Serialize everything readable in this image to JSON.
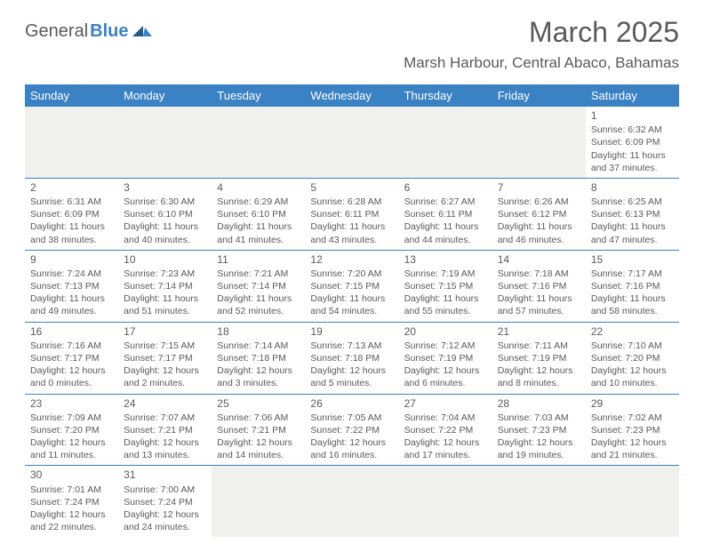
{
  "logo": {
    "part1": "General",
    "part2": "Blue"
  },
  "title": "March 2025",
  "location": "Marsh Harbour, Central Abaco, Bahamas",
  "colors": {
    "header_bg": "#3b82c4",
    "header_text": "#ffffff",
    "text": "#5a5a5a",
    "empty_bg": "#f0f0ee",
    "divider": "#3b82c4",
    "page_bg": "#ffffff"
  },
  "dayHeaders": [
    "Sunday",
    "Monday",
    "Tuesday",
    "Wednesday",
    "Thursday",
    "Friday",
    "Saturday"
  ],
  "weeks": [
    [
      {
        "empty": true
      },
      {
        "empty": true
      },
      {
        "empty": true
      },
      {
        "empty": true
      },
      {
        "empty": true
      },
      {
        "empty": true
      },
      {
        "day": "1",
        "sunrise": "Sunrise: 6:32 AM",
        "sunset": "Sunset: 6:09 PM",
        "daylight1": "Daylight: 11 hours",
        "daylight2": "and 37 minutes."
      }
    ],
    [
      {
        "day": "2",
        "sunrise": "Sunrise: 6:31 AM",
        "sunset": "Sunset: 6:09 PM",
        "daylight1": "Daylight: 11 hours",
        "daylight2": "and 38 minutes."
      },
      {
        "day": "3",
        "sunrise": "Sunrise: 6:30 AM",
        "sunset": "Sunset: 6:10 PM",
        "daylight1": "Daylight: 11 hours",
        "daylight2": "and 40 minutes."
      },
      {
        "day": "4",
        "sunrise": "Sunrise: 6:29 AM",
        "sunset": "Sunset: 6:10 PM",
        "daylight1": "Daylight: 11 hours",
        "daylight2": "and 41 minutes."
      },
      {
        "day": "5",
        "sunrise": "Sunrise: 6:28 AM",
        "sunset": "Sunset: 6:11 PM",
        "daylight1": "Daylight: 11 hours",
        "daylight2": "and 43 minutes."
      },
      {
        "day": "6",
        "sunrise": "Sunrise: 6:27 AM",
        "sunset": "Sunset: 6:11 PM",
        "daylight1": "Daylight: 11 hours",
        "daylight2": "and 44 minutes."
      },
      {
        "day": "7",
        "sunrise": "Sunrise: 6:26 AM",
        "sunset": "Sunset: 6:12 PM",
        "daylight1": "Daylight: 11 hours",
        "daylight2": "and 46 minutes."
      },
      {
        "day": "8",
        "sunrise": "Sunrise: 6:25 AM",
        "sunset": "Sunset: 6:13 PM",
        "daylight1": "Daylight: 11 hours",
        "daylight2": "and 47 minutes."
      }
    ],
    [
      {
        "day": "9",
        "sunrise": "Sunrise: 7:24 AM",
        "sunset": "Sunset: 7:13 PM",
        "daylight1": "Daylight: 11 hours",
        "daylight2": "and 49 minutes."
      },
      {
        "day": "10",
        "sunrise": "Sunrise: 7:23 AM",
        "sunset": "Sunset: 7:14 PM",
        "daylight1": "Daylight: 11 hours",
        "daylight2": "and 51 minutes."
      },
      {
        "day": "11",
        "sunrise": "Sunrise: 7:21 AM",
        "sunset": "Sunset: 7:14 PM",
        "daylight1": "Daylight: 11 hours",
        "daylight2": "and 52 minutes."
      },
      {
        "day": "12",
        "sunrise": "Sunrise: 7:20 AM",
        "sunset": "Sunset: 7:15 PM",
        "daylight1": "Daylight: 11 hours",
        "daylight2": "and 54 minutes."
      },
      {
        "day": "13",
        "sunrise": "Sunrise: 7:19 AM",
        "sunset": "Sunset: 7:15 PM",
        "daylight1": "Daylight: 11 hours",
        "daylight2": "and 55 minutes."
      },
      {
        "day": "14",
        "sunrise": "Sunrise: 7:18 AM",
        "sunset": "Sunset: 7:16 PM",
        "daylight1": "Daylight: 11 hours",
        "daylight2": "and 57 minutes."
      },
      {
        "day": "15",
        "sunrise": "Sunrise: 7:17 AM",
        "sunset": "Sunset: 7:16 PM",
        "daylight1": "Daylight: 11 hours",
        "daylight2": "and 58 minutes."
      }
    ],
    [
      {
        "day": "16",
        "sunrise": "Sunrise: 7:16 AM",
        "sunset": "Sunset: 7:17 PM",
        "daylight1": "Daylight: 12 hours",
        "daylight2": "and 0 minutes."
      },
      {
        "day": "17",
        "sunrise": "Sunrise: 7:15 AM",
        "sunset": "Sunset: 7:17 PM",
        "daylight1": "Daylight: 12 hours",
        "daylight2": "and 2 minutes."
      },
      {
        "day": "18",
        "sunrise": "Sunrise: 7:14 AM",
        "sunset": "Sunset: 7:18 PM",
        "daylight1": "Daylight: 12 hours",
        "daylight2": "and 3 minutes."
      },
      {
        "day": "19",
        "sunrise": "Sunrise: 7:13 AM",
        "sunset": "Sunset: 7:18 PM",
        "daylight1": "Daylight: 12 hours",
        "daylight2": "and 5 minutes."
      },
      {
        "day": "20",
        "sunrise": "Sunrise: 7:12 AM",
        "sunset": "Sunset: 7:19 PM",
        "daylight1": "Daylight: 12 hours",
        "daylight2": "and 6 minutes."
      },
      {
        "day": "21",
        "sunrise": "Sunrise: 7:11 AM",
        "sunset": "Sunset: 7:19 PM",
        "daylight1": "Daylight: 12 hours",
        "daylight2": "and 8 minutes."
      },
      {
        "day": "22",
        "sunrise": "Sunrise: 7:10 AM",
        "sunset": "Sunset: 7:20 PM",
        "daylight1": "Daylight: 12 hours",
        "daylight2": "and 10 minutes."
      }
    ],
    [
      {
        "day": "23",
        "sunrise": "Sunrise: 7:09 AM",
        "sunset": "Sunset: 7:20 PM",
        "daylight1": "Daylight: 12 hours",
        "daylight2": "and 11 minutes."
      },
      {
        "day": "24",
        "sunrise": "Sunrise: 7:07 AM",
        "sunset": "Sunset: 7:21 PM",
        "daylight1": "Daylight: 12 hours",
        "daylight2": "and 13 minutes."
      },
      {
        "day": "25",
        "sunrise": "Sunrise: 7:06 AM",
        "sunset": "Sunset: 7:21 PM",
        "daylight1": "Daylight: 12 hours",
        "daylight2": "and 14 minutes."
      },
      {
        "day": "26",
        "sunrise": "Sunrise: 7:05 AM",
        "sunset": "Sunset: 7:22 PM",
        "daylight1": "Daylight: 12 hours",
        "daylight2": "and 16 minutes."
      },
      {
        "day": "27",
        "sunrise": "Sunrise: 7:04 AM",
        "sunset": "Sunset: 7:22 PM",
        "daylight1": "Daylight: 12 hours",
        "daylight2": "and 17 minutes."
      },
      {
        "day": "28",
        "sunrise": "Sunrise: 7:03 AM",
        "sunset": "Sunset: 7:23 PM",
        "daylight1": "Daylight: 12 hours",
        "daylight2": "and 19 minutes."
      },
      {
        "day": "29",
        "sunrise": "Sunrise: 7:02 AM",
        "sunset": "Sunset: 7:23 PM",
        "daylight1": "Daylight: 12 hours",
        "daylight2": "and 21 minutes."
      }
    ],
    [
      {
        "day": "30",
        "sunrise": "Sunrise: 7:01 AM",
        "sunset": "Sunset: 7:24 PM",
        "daylight1": "Daylight: 12 hours",
        "daylight2": "and 22 minutes."
      },
      {
        "day": "31",
        "sunrise": "Sunrise: 7:00 AM",
        "sunset": "Sunset: 7:24 PM",
        "daylight1": "Daylight: 12 hours",
        "daylight2": "and 24 minutes."
      },
      {
        "empty": true
      },
      {
        "empty": true
      },
      {
        "empty": true
      },
      {
        "empty": true
      },
      {
        "empty": true
      }
    ]
  ]
}
